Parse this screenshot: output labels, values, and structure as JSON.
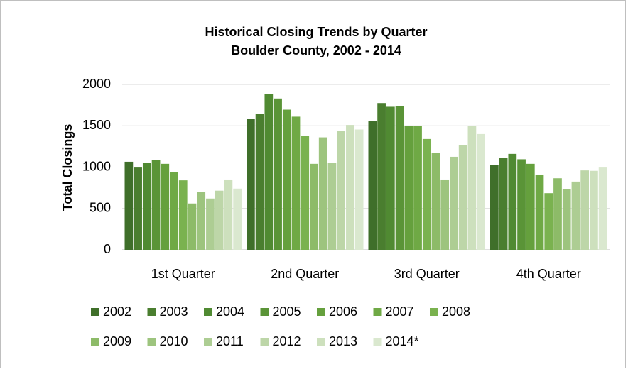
{
  "chart_data": {
    "type": "bar",
    "title": "Historical Closing Trends by Quarter",
    "subtitle": "Boulder County, 2002 - 2014",
    "y_label": "Total Closings",
    "categories": [
      "1st Quarter",
      "2nd Quarter",
      "3rd Quarter",
      "4th Quarter"
    ],
    "series": [
      {
        "name": "2002",
        "color": "#3f6f2a",
        "values": [
          1065,
          1580,
          1560,
          1030
        ]
      },
      {
        "name": "2003",
        "color": "#4a7e2f",
        "values": [
          995,
          1645,
          1775,
          1115
        ]
      },
      {
        "name": "2004",
        "color": "#508a32",
        "values": [
          1050,
          1885,
          1730,
          1160
        ]
      },
      {
        "name": "2005",
        "color": "#5a9437",
        "values": [
          1090,
          1830,
          1740,
          1095
        ]
      },
      {
        "name": "2006",
        "color": "#65a03d",
        "values": [
          1040,
          1695,
          1495,
          1040
        ]
      },
      {
        "name": "2007",
        "color": "#6fa945",
        "values": [
          940,
          1610,
          1495,
          910
        ]
      },
      {
        "name": "2008",
        "color": "#7ab24f",
        "values": [
          840,
          1375,
          1340,
          685
        ]
      },
      {
        "name": "2009",
        "color": "#8dbb68",
        "values": [
          560,
          1040,
          1175,
          865
        ]
      },
      {
        "name": "2010",
        "color": "#9dc47e",
        "values": [
          700,
          1360,
          850,
          730
        ]
      },
      {
        "name": "2011",
        "color": "#adcd93",
        "values": [
          620,
          1055,
          1125,
          825
        ]
      },
      {
        "name": "2012",
        "color": "#bdd6a8",
        "values": [
          715,
          1440,
          1270,
          960
        ]
      },
      {
        "name": "2013",
        "color": "#cde0bd",
        "values": [
          850,
          1510,
          1495,
          955
        ]
      },
      {
        "name": "2014*",
        "color": "#dae8cf",
        "values": [
          740,
          1455,
          1400,
          995
        ]
      }
    ],
    "ylim": [
      0,
      2000
    ],
    "yticks": [
      0,
      500,
      1000,
      1500,
      2000
    ],
    "grid": true
  }
}
